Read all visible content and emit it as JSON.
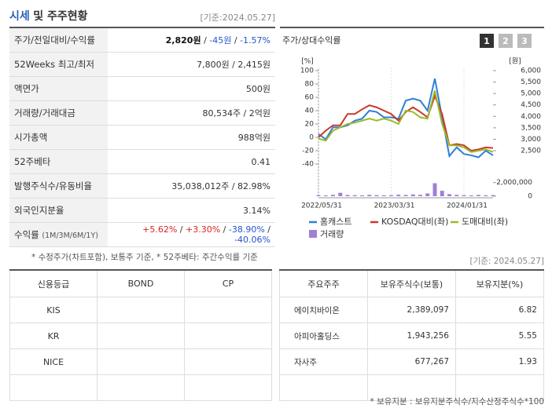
{
  "header": {
    "title_main": "시세",
    "title_rest": "및 주주현황",
    "date": "[기준:2024.05.27]"
  },
  "quote_table": {
    "rows": [
      {
        "label": "주가/전일대비/수익률",
        "value": [
          "2,820원",
          " / ",
          "-45원",
          " / ",
          "-1.57%"
        ]
      },
      {
        "label": "52Weeks 최고/최저",
        "value": [
          "7,800원 / 2,415원"
        ]
      },
      {
        "label": "액면가",
        "value": [
          "500원"
        ]
      },
      {
        "label": "거래량/거래대금",
        "value": [
          "80,534주 / 2억원"
        ]
      },
      {
        "label": "시가총액",
        "value": [
          "988억원"
        ]
      },
      {
        "label": "52주베타",
        "value": [
          "0.41"
        ]
      },
      {
        "label": "발행주식수/유동비율",
        "value": [
          "35,038,012주 / 82.98%"
        ]
      },
      {
        "label": "외국인지분율",
        "value": [
          "3.14%"
        ]
      },
      {
        "label": "수익률",
        "label_note": "(1M/3M/6M/1Y)",
        "value": [
          "+5.62%",
          " / ",
          "+3.30%",
          " / ",
          "-38.90%",
          " / ",
          "-40.06%"
        ]
      }
    ]
  },
  "quote_note": "* 수정주가(차트포함), 보통주 기준, * 52주베타: 주간수익률 기준",
  "price_chart": {
    "type": "line",
    "title": "주가/상대수익률",
    "tabs": [
      "1",
      "2",
      "3"
    ],
    "y_unit": "[%]",
    "y2_unit": "[원]",
    "categories": [
      "2022/05/31",
      null,
      null,
      null,
      null,
      null,
      null,
      null,
      null,
      null,
      "2023/03/31",
      null,
      null,
      null,
      null,
      null,
      null,
      null,
      null,
      null,
      "2024/01/31",
      null,
      null,
      null,
      null
    ],
    "ylim": [
      -40,
      100
    ],
    "yticks": [
      -40,
      -20,
      0,
      20,
      40,
      60,
      80,
      100
    ],
    "y2lim": [
      2500,
      6000
    ],
    "y2ticks": [
      {
        "value": 2500,
        "label": "2,500"
      },
      {
        "value": 3000,
        "label": "3,000"
      },
      {
        "value": 3500,
        "label": "3,500"
      },
      {
        "value": 4000,
        "label": "4,000"
      },
      {
        "value": 4500,
        "label": "4,500"
      },
      {
        "value": 5000,
        "label": "5,000"
      },
      {
        "value": 5500,
        "label": "5,500"
      },
      {
        "value": 6000,
        "label": "6,000"
      }
    ],
    "volume_lim": [
      0,
      3000000
    ],
    "volume_ticks": [
      0,
      {
        "value": 2000000,
        "label": "2,000,000"
      }
    ],
    "series": [
      {
        "name": "홈캐스트",
        "color": "#2f7fd8",
        "values": [
          5,
          -3,
          15,
          15,
          18,
          25,
          28,
          40,
          38,
          30,
          30,
          28,
          55,
          58,
          55,
          40,
          88,
          30,
          -28,
          -15,
          -25,
          -27,
          -30,
          -20,
          -27
        ]
      },
      {
        "name": "KOSDAQ대비(좌)",
        "color": "#c83a2a",
        "values": [
          0,
          10,
          18,
          18,
          35,
          35,
          42,
          48,
          45,
          40,
          35,
          25,
          38,
          45,
          38,
          30,
          62,
          35,
          -12,
          -10,
          -12,
          -20,
          -18,
          -15,
          -16
        ]
      },
      {
        "name": "도매대비(좌)",
        "color": "#9bbb2a",
        "values": [
          -2,
          -5,
          10,
          15,
          20,
          22,
          25,
          28,
          25,
          28,
          25,
          20,
          40,
          38,
          30,
          28,
          70,
          20,
          -12,
          -12,
          -15,
          -22,
          -20,
          -18,
          -22
        ]
      }
    ],
    "volume": {
      "name": "거래량",
      "color": "#a07fd8",
      "values": [
        150000,
        120000,
        200000,
        500000,
        180000,
        150000,
        130000,
        200000,
        160000,
        140000,
        150000,
        220000,
        180000,
        260000,
        200000,
        400000,
        1900000,
        800000,
        300000,
        200000,
        150000,
        120000,
        180000,
        140000,
        160000
      ]
    }
  },
  "chart_date": "[기준: 2024.05.27]",
  "credit_table": {
    "headers": [
      "신용등급",
      "BOND",
      "CP"
    ],
    "rows": [
      [
        "KIS",
        "",
        ""
      ],
      [
        "KR",
        "",
        ""
      ],
      [
        "NICE",
        "",
        ""
      ],
      [
        "",
        "",
        ""
      ]
    ]
  },
  "holder_table": {
    "headers": [
      "주요주주",
      "보유주식수(보통)",
      "보유지분(%)"
    ],
    "rows": [
      [
        "에이치바이온",
        "2,389,097",
        "6.82"
      ],
      [
        "아피아홀딩스",
        "1,943,256",
        "5.55"
      ],
      [
        "자사주",
        "677,267",
        "1.93"
      ],
      [
        "",
        "",
        ""
      ]
    ]
  },
  "holder_note": "* 보유지분 : 보유지분주식수/지수산정주식수*100"
}
